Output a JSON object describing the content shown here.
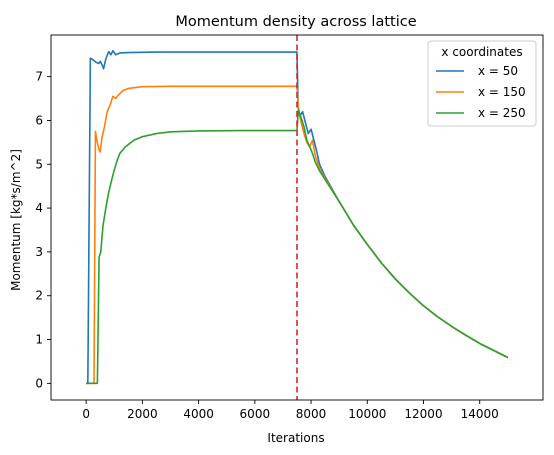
{
  "chart_data": {
    "type": "line",
    "title": "Momentum density across lattice",
    "xlabel": "Iterations",
    "ylabel": "Momentum [kg*s/m^2]",
    "xlim": [
      -1250,
      16250
    ],
    "ylim": [
      -0.38,
      7.95
    ],
    "xticks": [
      0,
      2000,
      4000,
      6000,
      8000,
      10000,
      12000,
      14000
    ],
    "yticks": [
      0,
      1,
      2,
      3,
      4,
      5,
      6,
      7
    ],
    "grid": false,
    "legend": {
      "title": "x coordinates",
      "placement": "top-right"
    },
    "vline": {
      "x": 7500,
      "color": "#d62728",
      "style": "dashed"
    },
    "series": [
      {
        "name": "x = 50",
        "color": "#1f77b4",
        "points": [
          [
            0,
            0
          ],
          [
            60,
            0
          ],
          [
            150,
            7.42
          ],
          [
            250,
            7.38
          ],
          [
            350,
            7.33
          ],
          [
            450,
            7.3
          ],
          [
            500,
            7.35
          ],
          [
            560,
            7.28
          ],
          [
            620,
            7.18
          ],
          [
            700,
            7.4
          ],
          [
            800,
            7.57
          ],
          [
            880,
            7.5
          ],
          [
            950,
            7.59
          ],
          [
            1050,
            7.5
          ],
          [
            1200,
            7.54
          ],
          [
            1500,
            7.55
          ],
          [
            2500,
            7.56
          ],
          [
            4000,
            7.56
          ],
          [
            6000,
            7.56
          ],
          [
            7500,
            7.56
          ],
          [
            7540,
            6.3
          ],
          [
            7600,
            6.1
          ],
          [
            7700,
            6.2
          ],
          [
            7800,
            5.95
          ],
          [
            7900,
            5.7
          ],
          [
            8000,
            5.8
          ],
          [
            8100,
            5.55
          ],
          [
            8200,
            5.3
          ],
          [
            8300,
            5.0
          ],
          [
            8500,
            4.72
          ],
          [
            9000,
            4.15
          ],
          [
            9500,
            3.62
          ],
          [
            10000,
            3.17
          ],
          [
            10500,
            2.75
          ],
          [
            11000,
            2.38
          ],
          [
            11500,
            2.06
          ],
          [
            12000,
            1.77
          ],
          [
            12500,
            1.52
          ],
          [
            13000,
            1.3
          ],
          [
            13500,
            1.1
          ],
          [
            14000,
            0.91
          ],
          [
            14500,
            0.75
          ],
          [
            15000,
            0.59
          ]
        ]
      },
      {
        "name": "x = 150",
        "color": "#ff7f0e",
        "points": [
          [
            0,
            0
          ],
          [
            150,
            0
          ],
          [
            280,
            0
          ],
          [
            330,
            5.75
          ],
          [
            380,
            5.55
          ],
          [
            450,
            5.35
          ],
          [
            500,
            5.28
          ],
          [
            560,
            5.6
          ],
          [
            650,
            5.85
          ],
          [
            750,
            6.2
          ],
          [
            850,
            6.35
          ],
          [
            950,
            6.55
          ],
          [
            1050,
            6.5
          ],
          [
            1150,
            6.58
          ],
          [
            1300,
            6.68
          ],
          [
            1500,
            6.73
          ],
          [
            2000,
            6.77
          ],
          [
            3000,
            6.78
          ],
          [
            5000,
            6.78
          ],
          [
            7500,
            6.78
          ],
          [
            7550,
            6.25
          ],
          [
            7650,
            5.95
          ],
          [
            7750,
            5.7
          ],
          [
            7850,
            5.5
          ],
          [
            7950,
            5.4
          ],
          [
            8050,
            5.55
          ],
          [
            8150,
            5.2
          ],
          [
            8300,
            4.9
          ],
          [
            8500,
            4.68
          ],
          [
            9000,
            4.15
          ],
          [
            9500,
            3.62
          ],
          [
            10000,
            3.17
          ],
          [
            10500,
            2.75
          ],
          [
            11000,
            2.38
          ],
          [
            11500,
            2.06
          ],
          [
            12000,
            1.77
          ],
          [
            12500,
            1.52
          ],
          [
            13000,
            1.3
          ],
          [
            13500,
            1.1
          ],
          [
            14000,
            0.91
          ],
          [
            14500,
            0.75
          ],
          [
            15000,
            0.59
          ]
        ]
      },
      {
        "name": "x = 250",
        "color": "#2ca02c",
        "points": [
          [
            0,
            0
          ],
          [
            200,
            0
          ],
          [
            400,
            0
          ],
          [
            460,
            2.88
          ],
          [
            520,
            3.0
          ],
          [
            600,
            3.6
          ],
          [
            700,
            4.0
          ],
          [
            800,
            4.35
          ],
          [
            900,
            4.62
          ],
          [
            1000,
            4.87
          ],
          [
            1100,
            5.08
          ],
          [
            1200,
            5.25
          ],
          [
            1400,
            5.4
          ],
          [
            1700,
            5.55
          ],
          [
            2000,
            5.63
          ],
          [
            2500,
            5.7
          ],
          [
            3000,
            5.74
          ],
          [
            4000,
            5.76
          ],
          [
            5500,
            5.77
          ],
          [
            7500,
            5.77
          ],
          [
            7550,
            6.25
          ],
          [
            7650,
            6.05
          ],
          [
            7750,
            5.85
          ],
          [
            7850,
            5.55
          ],
          [
            7950,
            5.4
          ],
          [
            8050,
            5.25
          ],
          [
            8150,
            5.05
          ],
          [
            8300,
            4.85
          ],
          [
            8500,
            4.65
          ],
          [
            9000,
            4.15
          ],
          [
            9500,
            3.62
          ],
          [
            10000,
            3.17
          ],
          [
            10500,
            2.75
          ],
          [
            11000,
            2.38
          ],
          [
            11500,
            2.06
          ],
          [
            12000,
            1.77
          ],
          [
            12500,
            1.52
          ],
          [
            13000,
            1.3
          ],
          [
            13500,
            1.1
          ],
          [
            14000,
            0.91
          ],
          [
            14500,
            0.75
          ],
          [
            15000,
            0.59
          ]
        ]
      }
    ]
  }
}
